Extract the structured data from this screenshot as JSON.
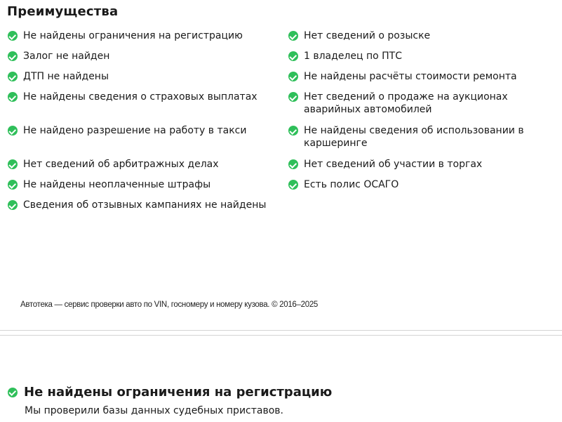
{
  "section_title": "Преимущества",
  "accent": "#2fbf5a",
  "left": [
    "Не найдены ограничения на регистрацию",
    "Залог не найден",
    "ДТП не найдены",
    "Не найдены сведения о страховых выплатах",
    "Не найдено разрешение на работу в такси",
    "Нет сведений об арбитражных делах",
    "Не найдены неоплаченные штрафы",
    "Сведения об отзывных кампаниях не найдены"
  ],
  "right": [
    "Нет сведений о розыске",
    "1 владелец по ПТС",
    "Не найдены расчёты стоимости ремонта",
    "Нет сведений о продаже на аукционах аварийных автомобилей",
    "Не найдены сведения об использовании в каршеринге",
    "Нет сведений об участии в торгах",
    "Есть полис ОСАГО"
  ],
  "footer": "Автотека — сервис проверки авто по VIN, госномеру и номеру кузова. © 2016–2025",
  "detail": {
    "title": "Не найдены ограничения на регистрацию",
    "description": "Мы проверили базы данных судебных приставов."
  }
}
